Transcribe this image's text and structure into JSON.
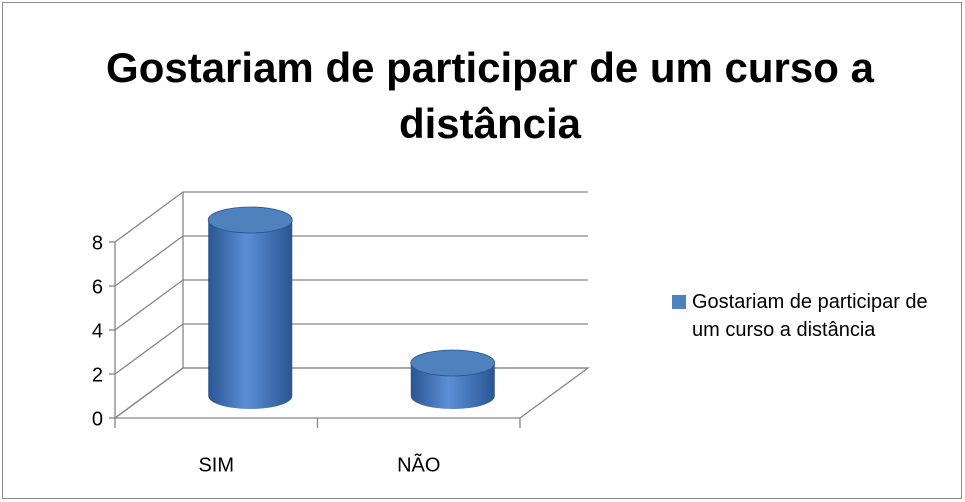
{
  "chart_data": {
    "type": "bar3d",
    "title": "Gostariam de participar de um curso a distância",
    "categories": [
      "SIM",
      "NÃO"
    ],
    "series": [
      {
        "name": "Gostariam de participar de um curso a distância",
        "color": "#4f81bd",
        "values": [
          8,
          1.5
        ]
      }
    ],
    "ylim": [
      0,
      8
    ],
    "yticks": [
      0,
      2,
      4,
      6,
      8
    ],
    "grid": true,
    "legend": "right"
  }
}
